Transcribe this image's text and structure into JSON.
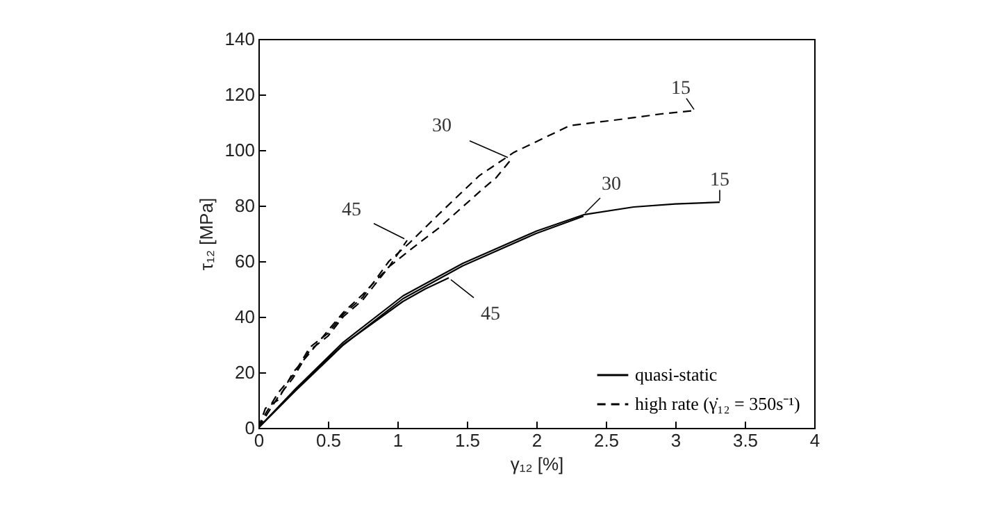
{
  "chart_data": {
    "type": "line",
    "xlabel": "γ₁₂ [%]",
    "ylabel": "τ₁₂ [MPa]",
    "xlim": [
      0,
      4
    ],
    "ylim": [
      0,
      140
    ],
    "xticks": [
      0,
      0.5,
      1,
      1.5,
      2,
      2.5,
      3,
      3.5,
      4
    ],
    "yticks": [
      0,
      20,
      40,
      60,
      80,
      100,
      120,
      140
    ],
    "grid": false,
    "legend": "bottom right",
    "marker": "none",
    "series": [
      {
        "name": "quasi-static",
        "color": "#000000",
        "line_style": "solid",
        "x": [
          0,
          0.27,
          0.61,
          1.04,
          1.47,
          2.0,
          2.34,
          2.7,
          3.0,
          3.32
        ],
        "values": [
          0,
          14.2,
          30.8,
          47.5,
          59.2,
          70.8,
          76.7,
          79.5,
          80.6,
          81.2
        ]
      },
      {
        "color": "#000000",
        "line_style": "solid",
        "x": [
          0,
          0.27,
          0.61,
          1.04,
          1.47,
          2.0,
          2.34
        ],
        "values": [
          0,
          13.5,
          29.8,
          46.5,
          58.3,
          70,
          76.2
        ]
      },
      {
        "color": "#000000",
        "line_style": "solid",
        "x": [
          0,
          0.27,
          0.61,
          1.04,
          1.2,
          1.37
        ],
        "values": [
          0,
          14,
          30,
          45.5,
          50,
          54
        ]
      },
      {
        "name": "high rate (γ̇₁₂ = 350s⁻¹)",
        "color": "#000000",
        "line_style": "dashed",
        "x": [
          0,
          0.05,
          0.14,
          0.25,
          0.37,
          0.5,
          0.61,
          0.75,
          0.94,
          1.09,
          1.3,
          1.59,
          1.84,
          2.0,
          2.24,
          2.6,
          2.9,
          3.14
        ],
        "values": [
          0,
          5,
          12.5,
          19,
          29,
          34,
          40.8,
          47,
          60,
          66.7,
          77,
          90.8,
          99.2,
          103,
          108.8,
          111,
          113,
          114.2
        ]
      },
      {
        "color": "#000000",
        "line_style": "dashed",
        "x": [
          0,
          0.05,
          0.14,
          0.25,
          0.37,
          0.5,
          0.61,
          0.75,
          0.94,
          1.09,
          1.3,
          1.61,
          1.71,
          1.82
        ],
        "values": [
          0,
          4,
          11,
          18,
          28,
          33,
          40,
          46,
          58,
          64,
          72,
          85.8,
          90,
          96.7
        ]
      },
      {
        "color": "#000000",
        "line_style": "dashed",
        "x": [
          0,
          0.05,
          0.14,
          0.25,
          0.37,
          0.5,
          0.61,
          0.75,
          0.94,
          1.07
        ],
        "values": [
          0,
          7,
          10,
          20,
          27,
          35,
          41.5,
          48,
          58,
          67.5
        ]
      }
    ],
    "annotations": [
      {
        "text": "15",
        "x": 3.14,
        "y": 114.2
      },
      {
        "text": "30",
        "x": 1.82,
        "y": 96.7
      },
      {
        "text": "45",
        "x": 1.07,
        "y": 67.5
      },
      {
        "text": "30",
        "x": 2.34,
        "y": 76.7
      },
      {
        "text": "15",
        "x": 3.32,
        "y": 81.2
      },
      {
        "text": "45",
        "x": 1.37,
        "y": 54
      }
    ]
  }
}
